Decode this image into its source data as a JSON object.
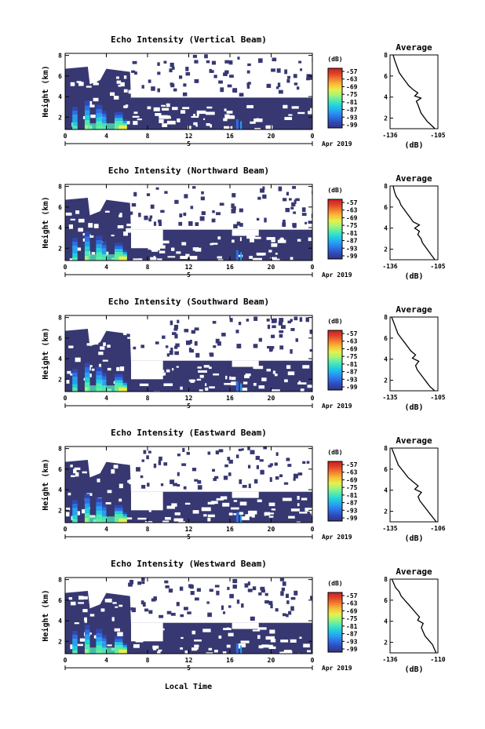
{
  "figure": {
    "xlabel_bottom": "Local Time",
    "colors": {
      "cb": [
        "#32347f",
        "#2e49b7",
        "#2e6fe4",
        "#27a0f2",
        "#20cfe0",
        "#4fe9b4",
        "#9ff47c",
        "#e6f04c",
        "#f7bf39",
        "#f37f2f",
        "#e0412a",
        "#c8201f"
      ],
      "background_fill": "#373872",
      "missing": "#ffffff"
    }
  },
  "chart_data": [
    {
      "type": "heatmap",
      "title": "Echo Intensity (Vertical Beam)",
      "ylabel": "Height (km)",
      "x_ticks": [
        "0",
        "4",
        "8",
        "12",
        "16",
        "20",
        "0"
      ],
      "x_range": [
        0,
        24
      ],
      "y_ticks": [
        "2",
        "4",
        "6",
        "8"
      ],
      "y_range": [
        0.8,
        8.2
      ],
      "date_tick": "5",
      "date_label": "Apr 2019",
      "colorbar": {
        "unit": "(dB)",
        "ticks": [
          "-57",
          "-63",
          "-69",
          "-75",
          "-81",
          "-87",
          "-93",
          "-99"
        ],
        "range": [
          -99,
          -57
        ]
      },
      "average": {
        "title": "Average",
        "xlabel": "(dB)",
        "x_ticks": [
          "-136",
          "-105"
        ],
        "x_range": [
          -136,
          -105
        ],
        "y_ticks": [
          "2",
          "4",
          "6",
          "8"
        ],
        "y_range": [
          1,
          8
        ],
        "profile": [
          [
            -107,
            1
          ],
          [
            -109,
            1.3
          ],
          [
            -112,
            1.7
          ],
          [
            -114,
            2.1
          ],
          [
            -116,
            2.5
          ],
          [
            -117,
            2.9
          ],
          [
            -118,
            3.3
          ],
          [
            -119,
            3.6
          ],
          [
            -116,
            3.9
          ],
          [
            -120,
            4.1
          ],
          [
            -118,
            4.4
          ],
          [
            -121,
            4.7
          ],
          [
            -124,
            5.1
          ],
          [
            -126,
            5.5
          ],
          [
            -128,
            5.9
          ],
          [
            -130,
            6.3
          ],
          [
            -131,
            6.7
          ],
          [
            -132,
            7.1
          ],
          [
            -133,
            7.5
          ],
          [
            -134,
            8
          ]
        ]
      }
    },
    {
      "type": "heatmap",
      "title": "Echo Intensity (Northward Beam)",
      "ylabel": "Height (km)",
      "x_ticks": [
        "0",
        "4",
        "8",
        "12",
        "16",
        "20",
        "0"
      ],
      "x_range": [
        0,
        24
      ],
      "y_ticks": [
        "2",
        "4",
        "6",
        "8"
      ],
      "y_range": [
        0.8,
        8.2
      ],
      "date_tick": "5",
      "date_label": "Apr 2019",
      "colorbar": {
        "unit": "(dB)",
        "ticks": [
          "-57",
          "-63",
          "-69",
          "-75",
          "-81",
          "-87",
          "-93",
          "-99"
        ],
        "range": [
          -99,
          -57
        ]
      },
      "average": {
        "title": "Average",
        "xlabel": "(dB)",
        "x_ticks": [
          "-136",
          "-105"
        ],
        "x_range": [
          -136,
          -105
        ],
        "y_ticks": [
          "2",
          "4",
          "6",
          "8"
        ],
        "y_range": [
          1,
          8
        ],
        "profile": [
          [
            -107,
            1
          ],
          [
            -109,
            1.4
          ],
          [
            -111,
            1.8
          ],
          [
            -113,
            2.2
          ],
          [
            -115,
            2.6
          ],
          [
            -116,
            3
          ],
          [
            -118,
            3.4
          ],
          [
            -117,
            3.7
          ],
          [
            -120,
            4
          ],
          [
            -117,
            4.3
          ],
          [
            -121,
            4.6
          ],
          [
            -123,
            5
          ],
          [
            -125,
            5.4
          ],
          [
            -127,
            5.8
          ],
          [
            -129,
            6.2
          ],
          [
            -130,
            6.6
          ],
          [
            -132,
            7
          ],
          [
            -133,
            7.4
          ],
          [
            -134,
            8
          ]
        ]
      }
    },
    {
      "type": "heatmap",
      "title": "Echo Intensity (Southward Beam)",
      "ylabel": "Height (km)",
      "x_ticks": [
        "0",
        "4",
        "8",
        "12",
        "16",
        "20",
        "0"
      ],
      "x_range": [
        0,
        24
      ],
      "y_ticks": [
        "2",
        "4",
        "6",
        "8"
      ],
      "y_range": [
        0.8,
        8.2
      ],
      "date_tick": "5",
      "date_label": "Apr 2019",
      "colorbar": {
        "unit": "(dB)",
        "ticks": [
          "-57",
          "-63",
          "-69",
          "-75",
          "-81",
          "-87",
          "-93",
          "-99"
        ],
        "range": [
          -99,
          -57
        ]
      },
      "average": {
        "title": "Average",
        "xlabel": "(dB)",
        "x_ticks": [
          "-135",
          "-105"
        ],
        "x_range": [
          -135,
          -105
        ],
        "y_ticks": [
          "2",
          "4",
          "6",
          "8"
        ],
        "y_range": [
          1,
          8
        ],
        "profile": [
          [
            -107,
            1
          ],
          [
            -110,
            1.4
          ],
          [
            -112,
            1.8
          ],
          [
            -114,
            2.2
          ],
          [
            -116,
            2.6
          ],
          [
            -118,
            3
          ],
          [
            -119,
            3.4
          ],
          [
            -117,
            3.8
          ],
          [
            -121,
            4.1
          ],
          [
            -119,
            4.4
          ],
          [
            -122,
            4.8
          ],
          [
            -124,
            5.2
          ],
          [
            -126,
            5.6
          ],
          [
            -128,
            6
          ],
          [
            -130,
            6.4
          ],
          [
            -131,
            6.8
          ],
          [
            -132,
            7.2
          ],
          [
            -133,
            7.6
          ],
          [
            -134,
            8
          ]
        ]
      }
    },
    {
      "type": "heatmap",
      "title": "Echo Intensity (Eastward Beam)",
      "ylabel": "Height (km)",
      "x_ticks": [
        "0",
        "4",
        "8",
        "12",
        "16",
        "20",
        "0"
      ],
      "x_range": [
        0,
        24
      ],
      "y_ticks": [
        "2",
        "4",
        "6",
        "8"
      ],
      "y_range": [
        0.8,
        8.2
      ],
      "date_tick": "5",
      "date_label": "Apr 2019",
      "colorbar": {
        "unit": "(dB)",
        "ticks": [
          "-57",
          "-63",
          "-69",
          "-75",
          "-81",
          "-87",
          "-93",
          "-99"
        ],
        "range": [
          -99,
          -57
        ]
      },
      "average": {
        "title": "Average",
        "xlabel": "(dB)",
        "x_ticks": [
          "-135",
          "-106"
        ],
        "x_range": [
          -135,
          -106
        ],
        "y_ticks": [
          "2",
          "4",
          "6",
          "8"
        ],
        "y_range": [
          1,
          8
        ],
        "profile": [
          [
            -107,
            1
          ],
          [
            -109,
            1.4
          ],
          [
            -111,
            1.8
          ],
          [
            -113,
            2.2
          ],
          [
            -115,
            2.6
          ],
          [
            -117,
            3
          ],
          [
            -118,
            3.4
          ],
          [
            -116,
            3.8
          ],
          [
            -120,
            4.1
          ],
          [
            -118,
            4.4
          ],
          [
            -121,
            4.8
          ],
          [
            -124,
            5.2
          ],
          [
            -126,
            5.6
          ],
          [
            -128,
            6
          ],
          [
            -130,
            6.4
          ],
          [
            -131,
            6.8
          ],
          [
            -132,
            7.2
          ],
          [
            -133,
            7.6
          ],
          [
            -134,
            8
          ]
        ]
      }
    },
    {
      "type": "heatmap",
      "title": "Echo Intensity (Westward Beam)",
      "ylabel": "Height (km)",
      "x_ticks": [
        "0",
        "4",
        "8",
        "12",
        "16",
        "20",
        "0"
      ],
      "x_range": [
        0,
        24
      ],
      "y_ticks": [
        "2",
        "4",
        "6",
        "8"
      ],
      "y_range": [
        0.8,
        8.2
      ],
      "date_tick": "5",
      "date_label": "Apr 2019",
      "colorbar": {
        "unit": "(dB)",
        "ticks": [
          "-57",
          "-63",
          "-69",
          "-75",
          "-81",
          "-87",
          "-93",
          "-99"
        ],
        "range": [
          -99,
          -57
        ]
      },
      "average": {
        "title": "Average",
        "xlabel": "(dB)",
        "x_ticks": [
          "-136",
          "-110"
        ],
        "x_range": [
          -136,
          -110
        ],
        "y_ticks": [
          "2",
          "4",
          "6",
          "8"
        ],
        "y_range": [
          1,
          8
        ],
        "profile": [
          [
            -111,
            1
          ],
          [
            -112,
            1.4
          ],
          [
            -113,
            1.8
          ],
          [
            -115,
            2.2
          ],
          [
            -117,
            2.6
          ],
          [
            -118,
            3
          ],
          [
            -119,
            3.4
          ],
          [
            -118,
            3.8
          ],
          [
            -121,
            4.1
          ],
          [
            -120,
            4.4
          ],
          [
            -122,
            4.8
          ],
          [
            -124,
            5.2
          ],
          [
            -126,
            5.6
          ],
          [
            -128,
            6
          ],
          [
            -130,
            6.4
          ],
          [
            -131,
            6.8
          ],
          [
            -133,
            7.2
          ],
          [
            -134,
            7.6
          ],
          [
            -135,
            8
          ]
        ]
      }
    }
  ]
}
